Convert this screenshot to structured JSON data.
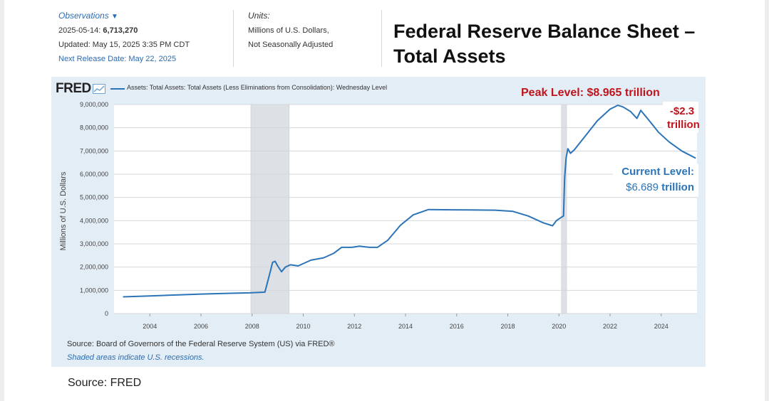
{
  "header": {
    "observations_label": "Observations",
    "observation_date": "2025-05-14:",
    "observation_value": "6,713,270",
    "updated": "Updated: May 15, 2025 3:35 PM CDT",
    "next_release": "Next Release Date: May 22, 2025",
    "units_label": "Units:",
    "units_line1": "Millions of U.S. Dollars,",
    "units_line2": "Not Seasonally Adjusted"
  },
  "title": "Federal Reserve Balance Sheet – Total Assets",
  "fred": {
    "logo": "FRED",
    "series_legend": "Assets: Total Assets: Total Assets (Less Eliminations from Consolidation): Wednesday Level",
    "source": "Source: Board of Governors of the Federal Reserve System (US) via FRED®",
    "shaded_note": "Shaded areas indicate U.S. recessions."
  },
  "annotations": {
    "peak": "Peak Level: $8.965 trillion",
    "decline_line1": "-$2.3",
    "decline_line2": "trillion",
    "current_label": "Current Level:",
    "current_value": "$6.689",
    "current_unit": "trillion"
  },
  "footer_source": "Source: FRED",
  "colors": {
    "series": "#2b74b8",
    "annotation_red": "#c0141c",
    "annotation_blue": "#2b74b8",
    "panel_bg": "#e3edf6",
    "recession_shade": "#dde0e4"
  },
  "chart_data": {
    "type": "line",
    "title": "",
    "xlabel": "",
    "ylabel": "Millions of U.S. Dollars",
    "xlim": [
      2002.6,
      2025.4
    ],
    "ylim": [
      0,
      9000000
    ],
    "xticks": [
      2004,
      2006,
      2008,
      2010,
      2012,
      2014,
      2016,
      2018,
      2020,
      2022,
      2024
    ],
    "yticks": [
      0,
      1000000,
      2000000,
      3000000,
      4000000,
      5000000,
      6000000,
      7000000,
      8000000,
      9000000
    ],
    "ytick_labels": [
      "0",
      "1,000,000",
      "2,000,000",
      "3,000,000",
      "4,000,000",
      "5,000,000",
      "6,000,000",
      "7,000,000",
      "8,000,000",
      "9,000,000"
    ],
    "grid": true,
    "recessions": [
      [
        2007.95,
        2009.45
      ],
      [
        2020.1,
        2020.3
      ]
    ],
    "series": [
      {
        "name": "Assets: Total Assets: Total Assets (Less Eliminations from Consolidation): Wednesday Level",
        "x": [
          2002.95,
          2004.0,
          2005.0,
          2006.0,
          2007.0,
          2007.9,
          2008.5,
          2008.72,
          2008.8,
          2008.9,
          2009.0,
          2009.15,
          2009.3,
          2009.5,
          2009.8,
          2010.3,
          2010.8,
          2011.2,
          2011.5,
          2011.9,
          2012.2,
          2012.6,
          2012.9,
          2013.3,
          2013.8,
          2014.3,
          2014.9,
          2015.5,
          2016.5,
          2017.5,
          2018.2,
          2018.8,
          2019.4,
          2019.75,
          2019.9,
          2020.1,
          2020.18,
          2020.22,
          2020.28,
          2020.35,
          2020.45,
          2020.6,
          2021.0,
          2021.5,
          2022.0,
          2022.3,
          2022.5,
          2022.8,
          2023.05,
          2023.2,
          2023.5,
          2023.9,
          2024.3,
          2024.8,
          2025.35
        ],
        "values": [
          720000,
          760000,
          800000,
          840000,
          870000,
          890000,
          920000,
          1850000,
          2200000,
          2250000,
          2050000,
          1800000,
          2000000,
          2100000,
          2050000,
          2300000,
          2400000,
          2600000,
          2850000,
          2850000,
          2900000,
          2850000,
          2850000,
          3150000,
          3800000,
          4250000,
          4480000,
          4470000,
          4460000,
          4450000,
          4400000,
          4200000,
          3900000,
          3780000,
          4000000,
          4150000,
          4200000,
          5800000,
          6700000,
          7100000,
          6900000,
          7050000,
          7600000,
          8300000,
          8800000,
          8965000,
          8900000,
          8700000,
          8400000,
          8750000,
          8350000,
          7800000,
          7400000,
          7000000,
          6689000
        ]
      }
    ]
  }
}
